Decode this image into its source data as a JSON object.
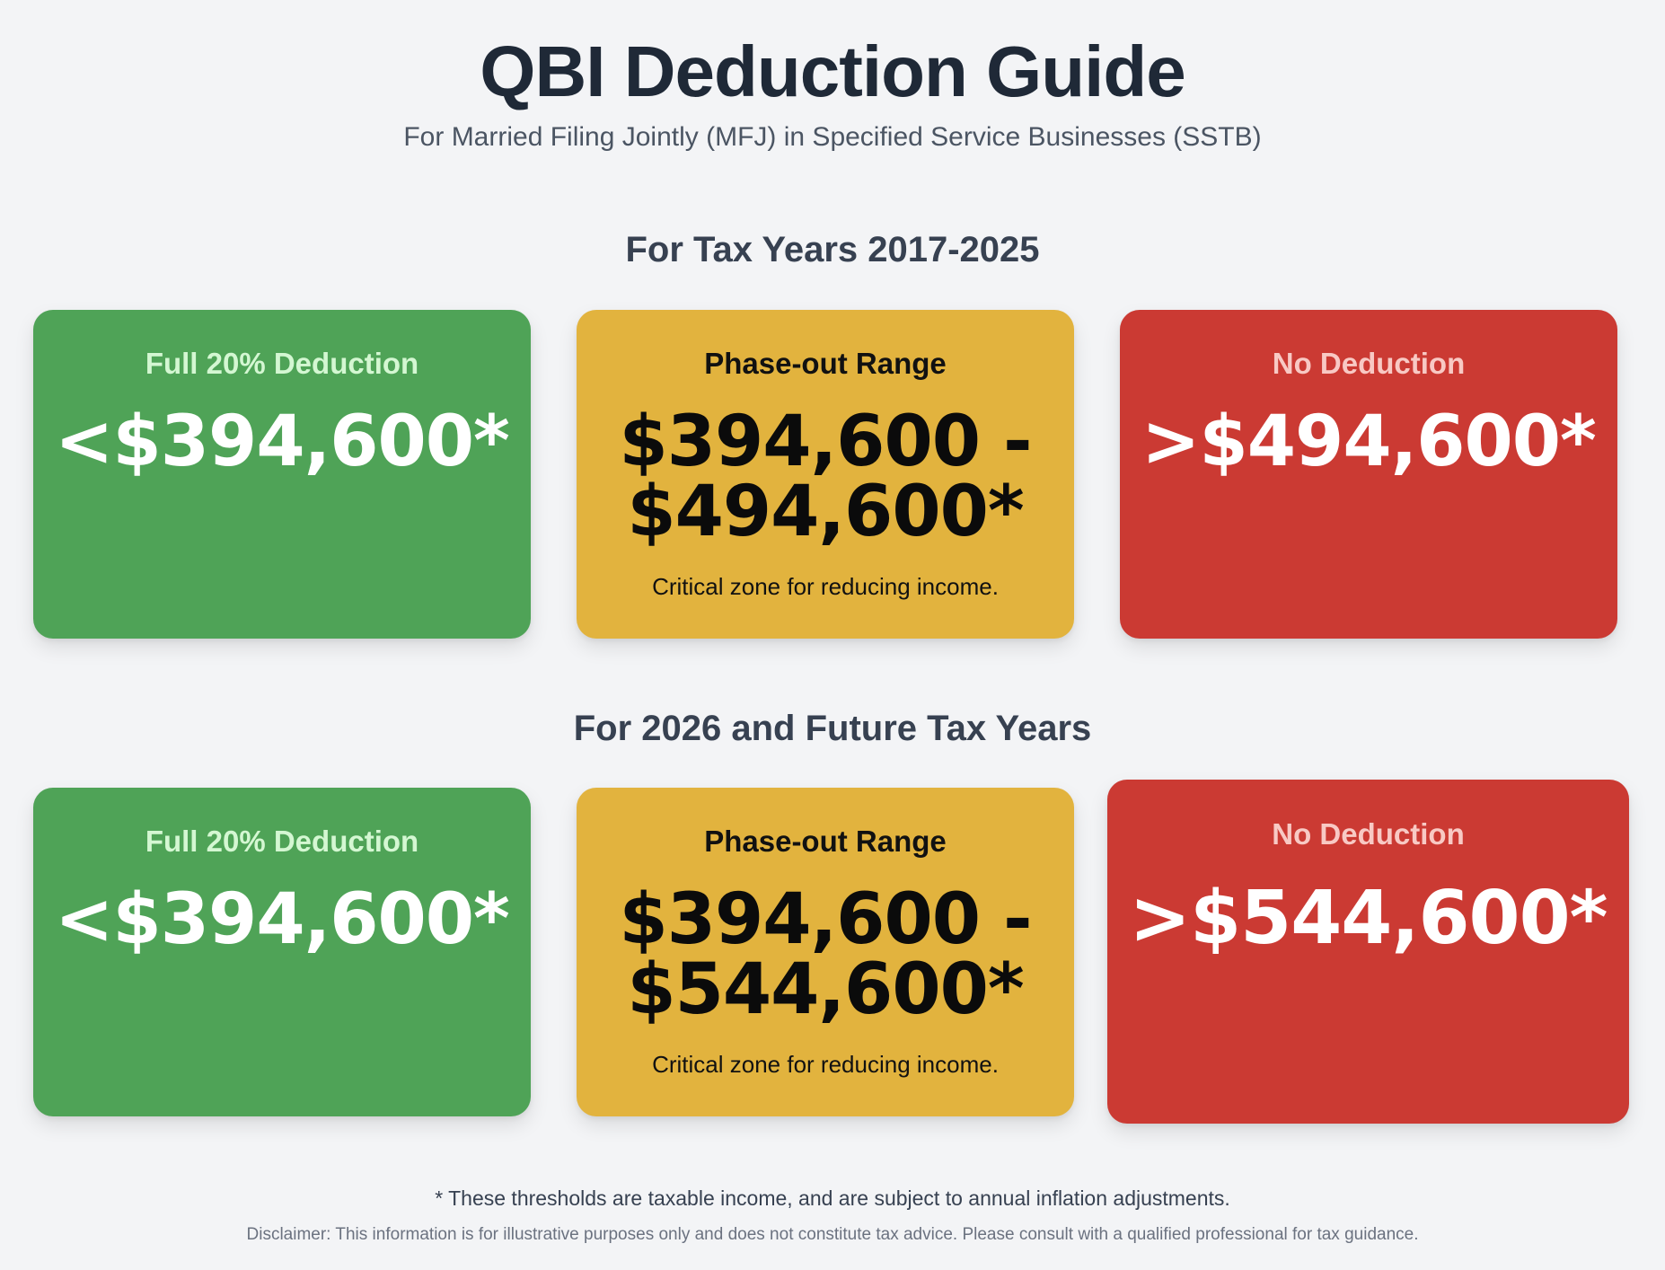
{
  "header": {
    "title": "QBI Deduction Guide",
    "subtitle": "For Married Filing Jointly (MFJ) in Specified Service Businesses (SSTB)"
  },
  "sections": [
    {
      "heading": "For Tax Years 2017-2025",
      "cards": [
        {
          "label": "Full 20% Deduction",
          "value": "<$394,600*",
          "color": "#4fa357"
        },
        {
          "label": "Phase-out Range",
          "value_line1": "$394,600 -",
          "value_line2": "$494,600*",
          "note": "Critical zone for reducing income.",
          "color": "#e2b33e"
        },
        {
          "label": "No Deduction",
          "value": ">$494,600*",
          "color": "#cb3a33"
        }
      ]
    },
    {
      "heading": "For 2026 and Future Tax Years",
      "cards": [
        {
          "label": "Full 20% Deduction",
          "value": "<$394,600*",
          "color": "#4fa357"
        },
        {
          "label": "Phase-out Range",
          "value_line1": "$394,600 -",
          "value_line2": "$544,600*",
          "note": "Critical zone for reducing income.",
          "color": "#e2b33e"
        },
        {
          "label": "No Deduction",
          "value": ">$544,600*",
          "color": "#cb3a33"
        }
      ]
    }
  ],
  "footer": {
    "footnote": "* These thresholds are taxable income, and are subject to annual inflation adjustments.",
    "disclaimer": "Disclaimer: This information is for illustrative purposes only and does not constitute tax advice. Please consult with a qualified professional for tax guidance."
  }
}
